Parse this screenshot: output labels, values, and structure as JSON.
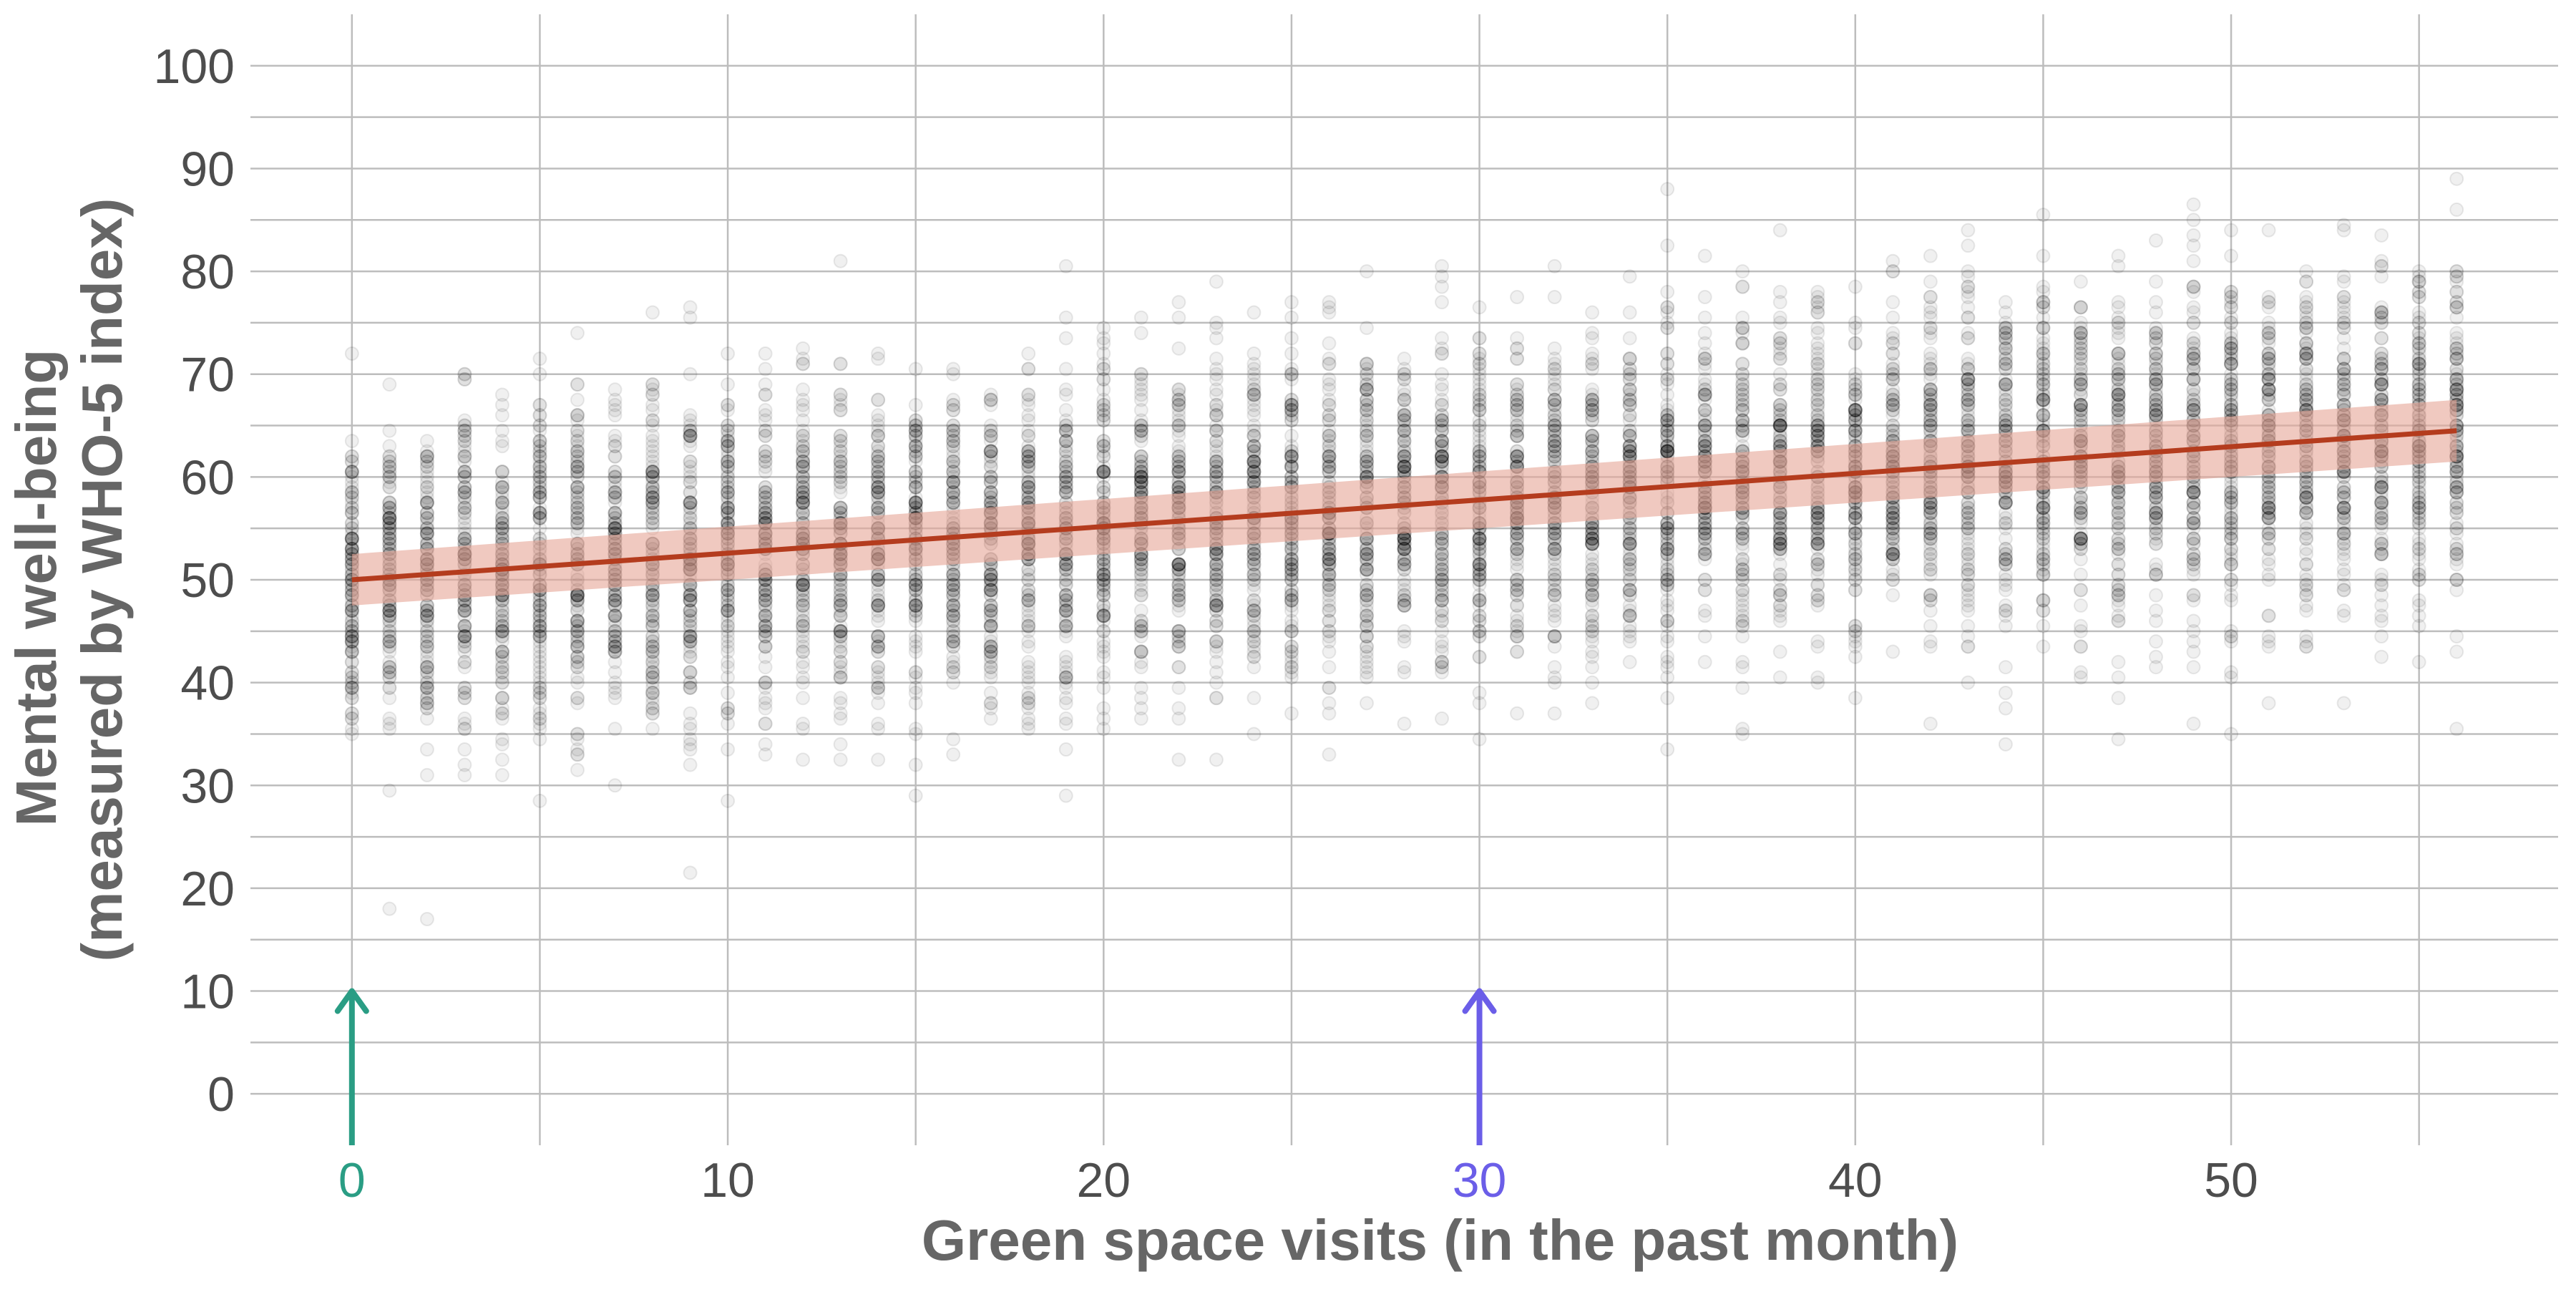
{
  "chart_data": {
    "type": "scatter",
    "title": "",
    "xlabel": "Green space visits (in the past month)",
    "ylabel_lines": [
      "Mental well-being",
      "(measured by WHO-5 index)"
    ],
    "xlim": [
      -2.7,
      58.7
    ],
    "ylim": [
      -5,
      105
    ],
    "x_ticks": [
      0,
      10,
      20,
      30,
      40,
      50
    ],
    "x_tick_labels": [
      "0",
      "10",
      "20",
      "30",
      "40",
      "50"
    ],
    "y_ticks": [
      0,
      10,
      20,
      30,
      40,
      50,
      60,
      70,
      80,
      90,
      100
    ],
    "y_tick_labels": [
      "0",
      "10",
      "20",
      "30",
      "40",
      "50",
      "60",
      "70",
      "80",
      "90",
      "100"
    ],
    "grid": true,
    "legend": "none",
    "scatter_summary": {
      "x_min": 0,
      "x_max": 56,
      "x_step": 1,
      "points_per_x": 130,
      "trend_mean_at_x0": 50,
      "trend_mean_at_x56": 64.5,
      "spread_sd": 8,
      "point_color": "#000000",
      "point_alpha": 0.06
    },
    "series": [
      {
        "type": "regression_line",
        "x": [
          0,
          56
        ],
        "y": [
          50,
          64.5
        ],
        "color": "#b43c1e"
      },
      {
        "type": "confidence_band",
        "x": [
          0,
          56
        ],
        "lower": [
          47.5,
          61.5
        ],
        "upper": [
          52.5,
          67.5
        ],
        "color": "#e6a596"
      }
    ],
    "annotations": [
      {
        "type": "arrow",
        "x": 0,
        "y_from": -5,
        "y_to": 10,
        "color": "#2a9d84",
        "highlights_tick": "0"
      },
      {
        "type": "arrow",
        "x": 30,
        "y_from": -5,
        "y_to": 10,
        "color": "#6b5ee8",
        "highlights_tick": "30"
      }
    ],
    "colors": {
      "grid": "#bdbdbd",
      "tick_text": "#4d4d4d",
      "axis_title": "#666666",
      "highlight_0": "#2a9d84",
      "highlight_30": "#6b5ee8"
    }
  }
}
